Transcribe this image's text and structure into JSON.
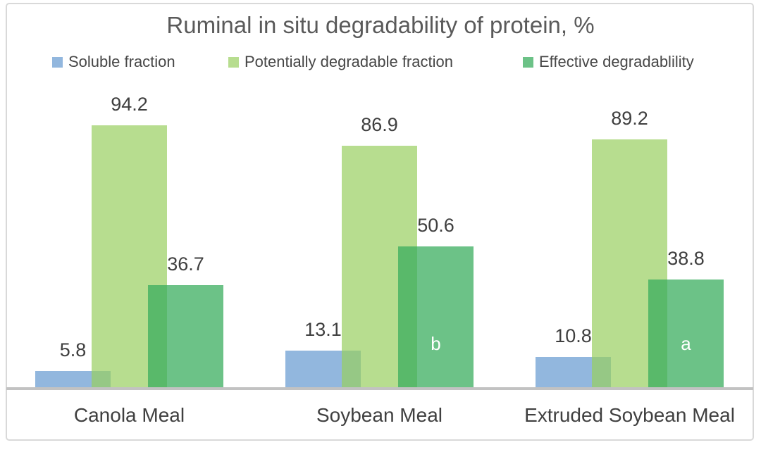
{
  "page": {
    "background_color": "#ffffff",
    "frame_border_color": "#d9d9d9",
    "axis_line_color": "#c2c2c2",
    "title_color": "#5a5a5a",
    "label_color": "#3f3f3f"
  },
  "chart_data": {
    "type": "bar",
    "title": "Ruminal in situ degradability of protein, %",
    "categories": [
      "Canola Meal",
      "Soybean Meal",
      "Extruded Soybean Meal"
    ],
    "series": [
      {
        "name": "Soluble fraction",
        "color": "rgba(100,152,208,0.70)",
        "values": [
          5.8,
          13.1,
          10.8
        ]
      },
      {
        "name": "Potentially degradable fraction",
        "color": "rgba(152,206,96,0.70)",
        "values": [
          94.2,
          86.9,
          89.2
        ]
      },
      {
        "name": "Effective degradablility",
        "color": "rgba(56,173,93,0.74)",
        "values": [
          36.7,
          50.6,
          38.8
        ]
      }
    ],
    "data_labels": [
      [
        "5.8",
        "13.1",
        "10.8"
      ],
      [
        "94.2",
        "86.9",
        "89.2"
      ],
      [
        "36.7",
        "50.6",
        "38.8"
      ]
    ],
    "bar_letter_annotations": [
      {
        "category_index": 1,
        "series_index": 2,
        "text": "b",
        "color": "#ffffff"
      },
      {
        "category_index": 2,
        "series_index": 2,
        "text": "a",
        "color": "#ffffff"
      }
    ],
    "ylim": [
      0,
      100
    ],
    "grid": false,
    "y_axis_visible": false,
    "legend_position": "top",
    "bars_overlap": true
  }
}
